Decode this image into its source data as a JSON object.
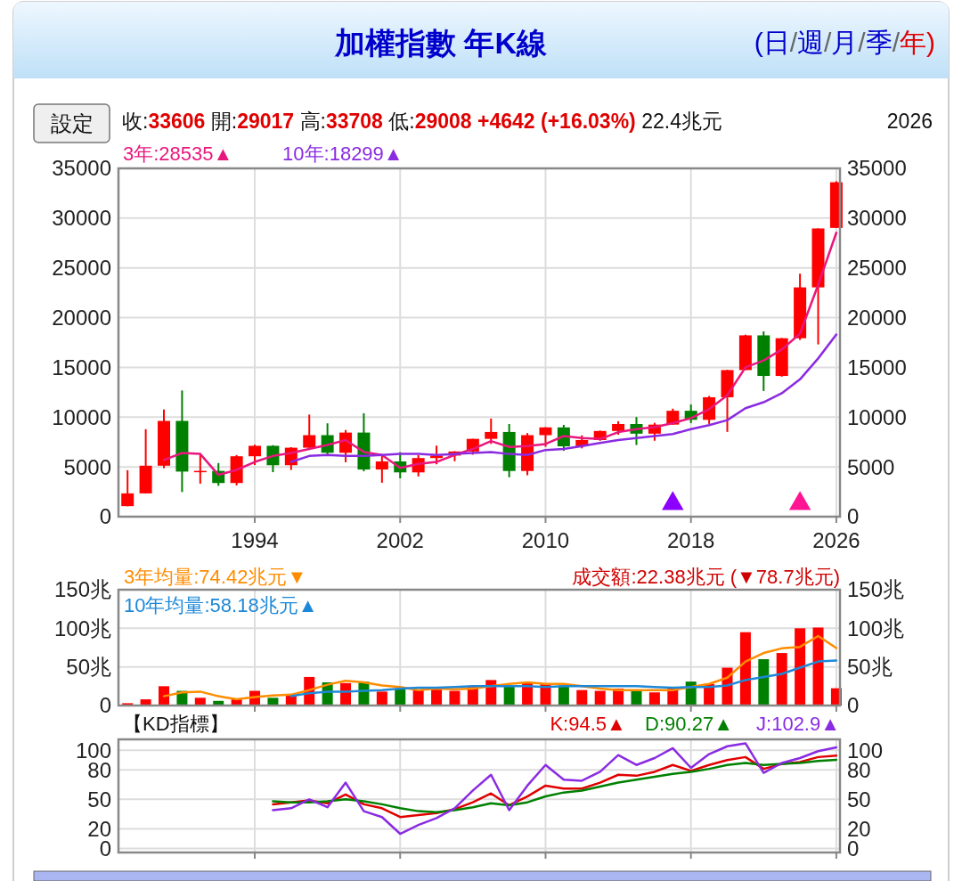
{
  "chart_data": [
    {
      "type": "candlestick",
      "title": "加權指數 年K線",
      "annotations": [
        "(日/週/月/季/年)",
        "設定",
        "收:33606 開:29017 高:33708 低:29008 +4642 (+16.03%) 22.4兆元",
        "2026"
      ],
      "x": [
        1987,
        1988,
        1989,
        1990,
        1991,
        1992,
        1993,
        1994,
        1995,
        1996,
        1997,
        1998,
        1999,
        2000,
        2001,
        2002,
        2003,
        2004,
        2005,
        2006,
        2007,
        2008,
        2009,
        2010,
        2011,
        2012,
        2013,
        2014,
        2015,
        2016,
        2017,
        2018,
        2019,
        2020,
        2021,
        2022,
        2023,
        2024,
        2025,
        2026
      ],
      "ohlc": [
        [
          1060,
          4670,
          1040,
          2340
        ],
        [
          2340,
          8790,
          2340,
          5120
        ],
        [
          5120,
          10770,
          4870,
          9620
        ],
        [
          9620,
          12680,
          2480,
          4530
        ],
        [
          4530,
          6370,
          3320,
          4600
        ],
        [
          4600,
          5390,
          3100,
          3380
        ],
        [
          3380,
          6190,
          3140,
          6070
        ],
        [
          6070,
          7230,
          5190,
          7120
        ],
        [
          7120,
          7180,
          4470,
          5170
        ],
        [
          5170,
          6980,
          4690,
          6930
        ],
        [
          6930,
          10260,
          6820,
          8190
        ],
        [
          8190,
          9380,
          6220,
          6420
        ],
        [
          6420,
          8710,
          5470,
          8450
        ],
        [
          8450,
          10390,
          4560,
          4740
        ],
        [
          4740,
          6100,
          3410,
          5550
        ],
        [
          5550,
          6480,
          3850,
          4450
        ],
        [
          4450,
          6180,
          4040,
          5890
        ],
        [
          5890,
          7140,
          5260,
          6140
        ],
        [
          6140,
          6580,
          5570,
          6550
        ],
        [
          6550,
          7820,
          6230,
          7820
        ],
        [
          7820,
          9860,
          7310,
          8510
        ],
        [
          8510,
          9310,
          3960,
          4590
        ],
        [
          4590,
          8400,
          4160,
          8190
        ],
        [
          8190,
          8990,
          7030,
          8970
        ],
        [
          8970,
          9220,
          6610,
          7070
        ],
        [
          7070,
          8170,
          6860,
          7700
        ],
        [
          7700,
          8650,
          7620,
          8610
        ],
        [
          8610,
          9590,
          8230,
          9310
        ],
        [
          9310,
          10010,
          7200,
          8340
        ],
        [
          8340,
          9430,
          7630,
          9250
        ],
        [
          9250,
          10850,
          9250,
          10640
        ],
        [
          10640,
          11270,
          9400,
          9730
        ],
        [
          9730,
          12130,
          9320,
          12000
        ],
        [
          12000,
          14760,
          8520,
          14730
        ],
        [
          14730,
          18290,
          14730,
          18220
        ],
        [
          18220,
          18620,
          12630,
          14140
        ],
        [
          14140,
          17950,
          14070,
          17930
        ],
        [
          17930,
          24420,
          17760,
          23040
        ],
        [
          23040,
          28970,
          17310,
          28960
        ],
        [
          29017,
          33708,
          29008,
          33606
        ]
      ],
      "colors": [
        "#ff0000",
        "#ff0000",
        "#ff0000",
        "#008000",
        "#ff0000",
        "#008000",
        "#ff0000",
        "#ff0000",
        "#008000",
        "#ff0000",
        "#ff0000",
        "#008000",
        "#ff0000",
        "#008000",
        "#ff0000",
        "#008000",
        "#ff0000",
        "#ff0000",
        "#ff0000",
        "#ff0000",
        "#ff0000",
        "#008000",
        "#ff0000",
        "#ff0000",
        "#008000",
        "#ff0000",
        "#ff0000",
        "#ff0000",
        "#008000",
        "#ff0000",
        "#ff0000",
        "#008000",
        "#ff0000",
        "#ff0000",
        "#ff0000",
        "#008000",
        "#ff0000",
        "#ff0000",
        "#ff0000",
        "#ff0000"
      ],
      "series": [
        {
          "type": "line",
          "name": "3年:28535▲",
          "color": "#e8177d",
          "values": [
            null,
            null,
            5700,
            6400,
            6300,
            4200,
            4700,
            5500,
            6100,
            6400,
            6800,
            7200,
            7700,
            6500,
            6200,
            4900,
            5300,
            5500,
            6200,
            6800,
            7600,
            7000,
            7100,
            7300,
            8100,
            7900,
            7800,
            8500,
            8800,
            9000,
            9400,
            9900,
            10800,
            12200,
            15000,
            15700,
            16800,
            18400,
            23300,
            28535
          ]
        },
        {
          "type": "line",
          "name": "10年:18299▲",
          "color": "#8a2be2",
          "values": [
            null,
            null,
            null,
            null,
            null,
            null,
            null,
            null,
            null,
            5500,
            6100,
            6200,
            6100,
            6100,
            6200,
            6300,
            6300,
            6200,
            6300,
            6400,
            6500,
            6300,
            6200,
            6700,
            6800,
            7100,
            7400,
            7700,
            7900,
            8100,
            8300,
            8800,
            9200,
            9700,
            10900,
            11500,
            12400,
            13800,
            15900,
            18299
          ]
        },
        {
          "type": "scatter",
          "color": "#8b00ff",
          "marker": "triangle",
          "x": [
            2017
          ],
          "values": [
            1300
          ]
        },
        {
          "type": "scatter",
          "color": "#ff1493",
          "marker": "triangle",
          "x": [
            2024
          ],
          "values": [
            1300
          ]
        }
      ],
      "xlim": [
        1986.5,
        2026.2
      ],
      "xticks": [
        1994,
        2002,
        2010,
        2018,
        2026
      ],
      "ylim": [
        0,
        35000
      ],
      "yticks": [
        0,
        5000,
        10000,
        15000,
        20000,
        25000,
        30000,
        35000
      ],
      "y2lim": [
        0,
        35000
      ],
      "y2ticks": [
        0,
        5000,
        10000,
        15000,
        20000,
        25000,
        30000,
        35000
      ],
      "grid": true,
      "legend": "top left"
    },
    {
      "type": "bar",
      "annotations": [
        "成交額:22.38兆元 (▼78.7兆元)"
      ],
      "x": [
        1987,
        1988,
        1989,
        1990,
        1991,
        1992,
        1993,
        1994,
        1995,
        1996,
        1997,
        1998,
        1999,
        2000,
        2001,
        2002,
        2003,
        2004,
        2005,
        2006,
        2007,
        2008,
        2009,
        2010,
        2011,
        2012,
        2013,
        2014,
        2015,
        2016,
        2017,
        2018,
        2019,
        2020,
        2021,
        2022,
        2023,
        2024,
        2025,
        2026
      ],
      "values": [
        3,
        8,
        25,
        19,
        10,
        6,
        9,
        19,
        10,
        13,
        37,
        30,
        29,
        31,
        18,
        22,
        20,
        24,
        19,
        24,
        33,
        26,
        30,
        28,
        26,
        20,
        19,
        22,
        20,
        17,
        24,
        31,
        28,
        49,
        95,
        60,
        68,
        100,
        101,
        22.38
      ],
      "colors": [
        "#ff0000",
        "#ff0000",
        "#ff0000",
        "#008000",
        "#ff0000",
        "#008000",
        "#ff0000",
        "#ff0000",
        "#008000",
        "#ff0000",
        "#ff0000",
        "#008000",
        "#ff0000",
        "#008000",
        "#ff0000",
        "#008000",
        "#ff0000",
        "#ff0000",
        "#ff0000",
        "#ff0000",
        "#ff0000",
        "#008000",
        "#ff0000",
        "#ff0000",
        "#008000",
        "#ff0000",
        "#ff0000",
        "#ff0000",
        "#008000",
        "#ff0000",
        "#ff0000",
        "#008000",
        "#ff0000",
        "#ff0000",
        "#ff0000",
        "#008000",
        "#ff0000",
        "#ff0000",
        "#ff0000",
        "#ff0000"
      ],
      "series": [
        {
          "type": "line",
          "name": "3年均量:74.42兆元▼",
          "color": "#ff8c00",
          "values": [
            null,
            null,
            12,
            17,
            18,
            12,
            8,
            11,
            13,
            14,
            20,
            27,
            32,
            30,
            26,
            24,
            20,
            22,
            21,
            22,
            25,
            28,
            30,
            28,
            28,
            25,
            22,
            20,
            20,
            20,
            20,
            24,
            28,
            36,
            57,
            68,
            74,
            76,
            90,
            74.42
          ]
        },
        {
          "type": "line",
          "name": "10年均量:58.18兆元▲",
          "color": "#1e88d8",
          "values": [
            null,
            null,
            null,
            null,
            null,
            null,
            null,
            null,
            null,
            12,
            16,
            18,
            18,
            19,
            20,
            22,
            23,
            23,
            24,
            25,
            25,
            25,
            25,
            24,
            25,
            25,
            25,
            25,
            25,
            24,
            23,
            24,
            24,
            26,
            33,
            37,
            41,
            49,
            57,
            58.18
          ]
        }
      ],
      "xlim": [
        1986.5,
        2026.2
      ],
      "xticks": [
        1994,
        2002,
        2010,
        2018,
        2026
      ],
      "ylim": [
        0,
        150
      ],
      "yticks": [
        0,
        {
          "value": 50,
          "label": "50兆"
        },
        {
          "value": 100,
          "label": "100兆"
        },
        {
          "value": 150,
          "label": "150兆"
        }
      ],
      "y2lim": [
        0,
        150
      ],
      "y2ticks": [
        0,
        {
          "value": 50,
          "label": "50兆"
        },
        {
          "value": 100,
          "label": "100兆"
        },
        {
          "value": 150,
          "label": "150兆"
        }
      ],
      "tick_labels": "y",
      "grid": true,
      "legend": "top left"
    },
    {
      "type": "line",
      "title": "【KD指標】",
      "x": [
        1995,
        1996,
        1997,
        1998,
        1999,
        2000,
        2001,
        2002,
        2003,
        2004,
        2005,
        2006,
        2007,
        2008,
        2009,
        2010,
        2011,
        2012,
        2013,
        2014,
        2015,
        2016,
        2017,
        2018,
        2019,
        2020,
        2021,
        2022,
        2023,
        2024,
        2025,
        2026
      ],
      "series": [
        {
          "name": "K:94.5▲",
          "color": "#e00000",
          "values": [
            45,
            47,
            49,
            46,
            55,
            45,
            41,
            32,
            34,
            36,
            40,
            47,
            56,
            44,
            53,
            64,
            61,
            61,
            67,
            75,
            74,
            78,
            85,
            79,
            85,
            90,
            93,
            81,
            86,
            88,
            93,
            94.5
          ]
        },
        {
          "name": "D:90.27▲",
          "color": "#008000",
          "values": [
            48,
            47,
            47,
            48,
            50,
            48,
            45,
            41,
            38,
            37,
            39,
            42,
            46,
            44,
            47,
            53,
            57,
            59,
            63,
            67,
            70,
            73,
            76,
            78,
            81,
            85,
            87,
            85,
            86,
            87,
            89,
            90.27
          ]
        },
        {
          "name": "J:102.9▲",
          "color": "#8a2be2",
          "values": [
            39,
            41,
            50,
            42,
            67,
            38,
            32,
            15,
            24,
            31,
            41,
            59,
            75,
            39,
            64,
            85,
            70,
            69,
            78,
            95,
            85,
            92,
            102,
            82,
            96,
            104,
            107,
            77,
            87,
            92,
            99,
            102.9
          ]
        }
      ],
      "xlim": [
        1986.5,
        2026.2
      ],
      "xticks": [
        1994,
        2002,
        2010,
        2018,
        2026
      ],
      "ylim": [
        -4,
        111
      ],
      "yticks": [
        0,
        20,
        50,
        80,
        100
      ],
      "y2lim": [
        -4,
        111
      ],
      "y2ticks": [
        0,
        20,
        50,
        80,
        100
      ],
      "tick_labels": "y",
      "grid": true,
      "legend": "top right"
    }
  ]
}
